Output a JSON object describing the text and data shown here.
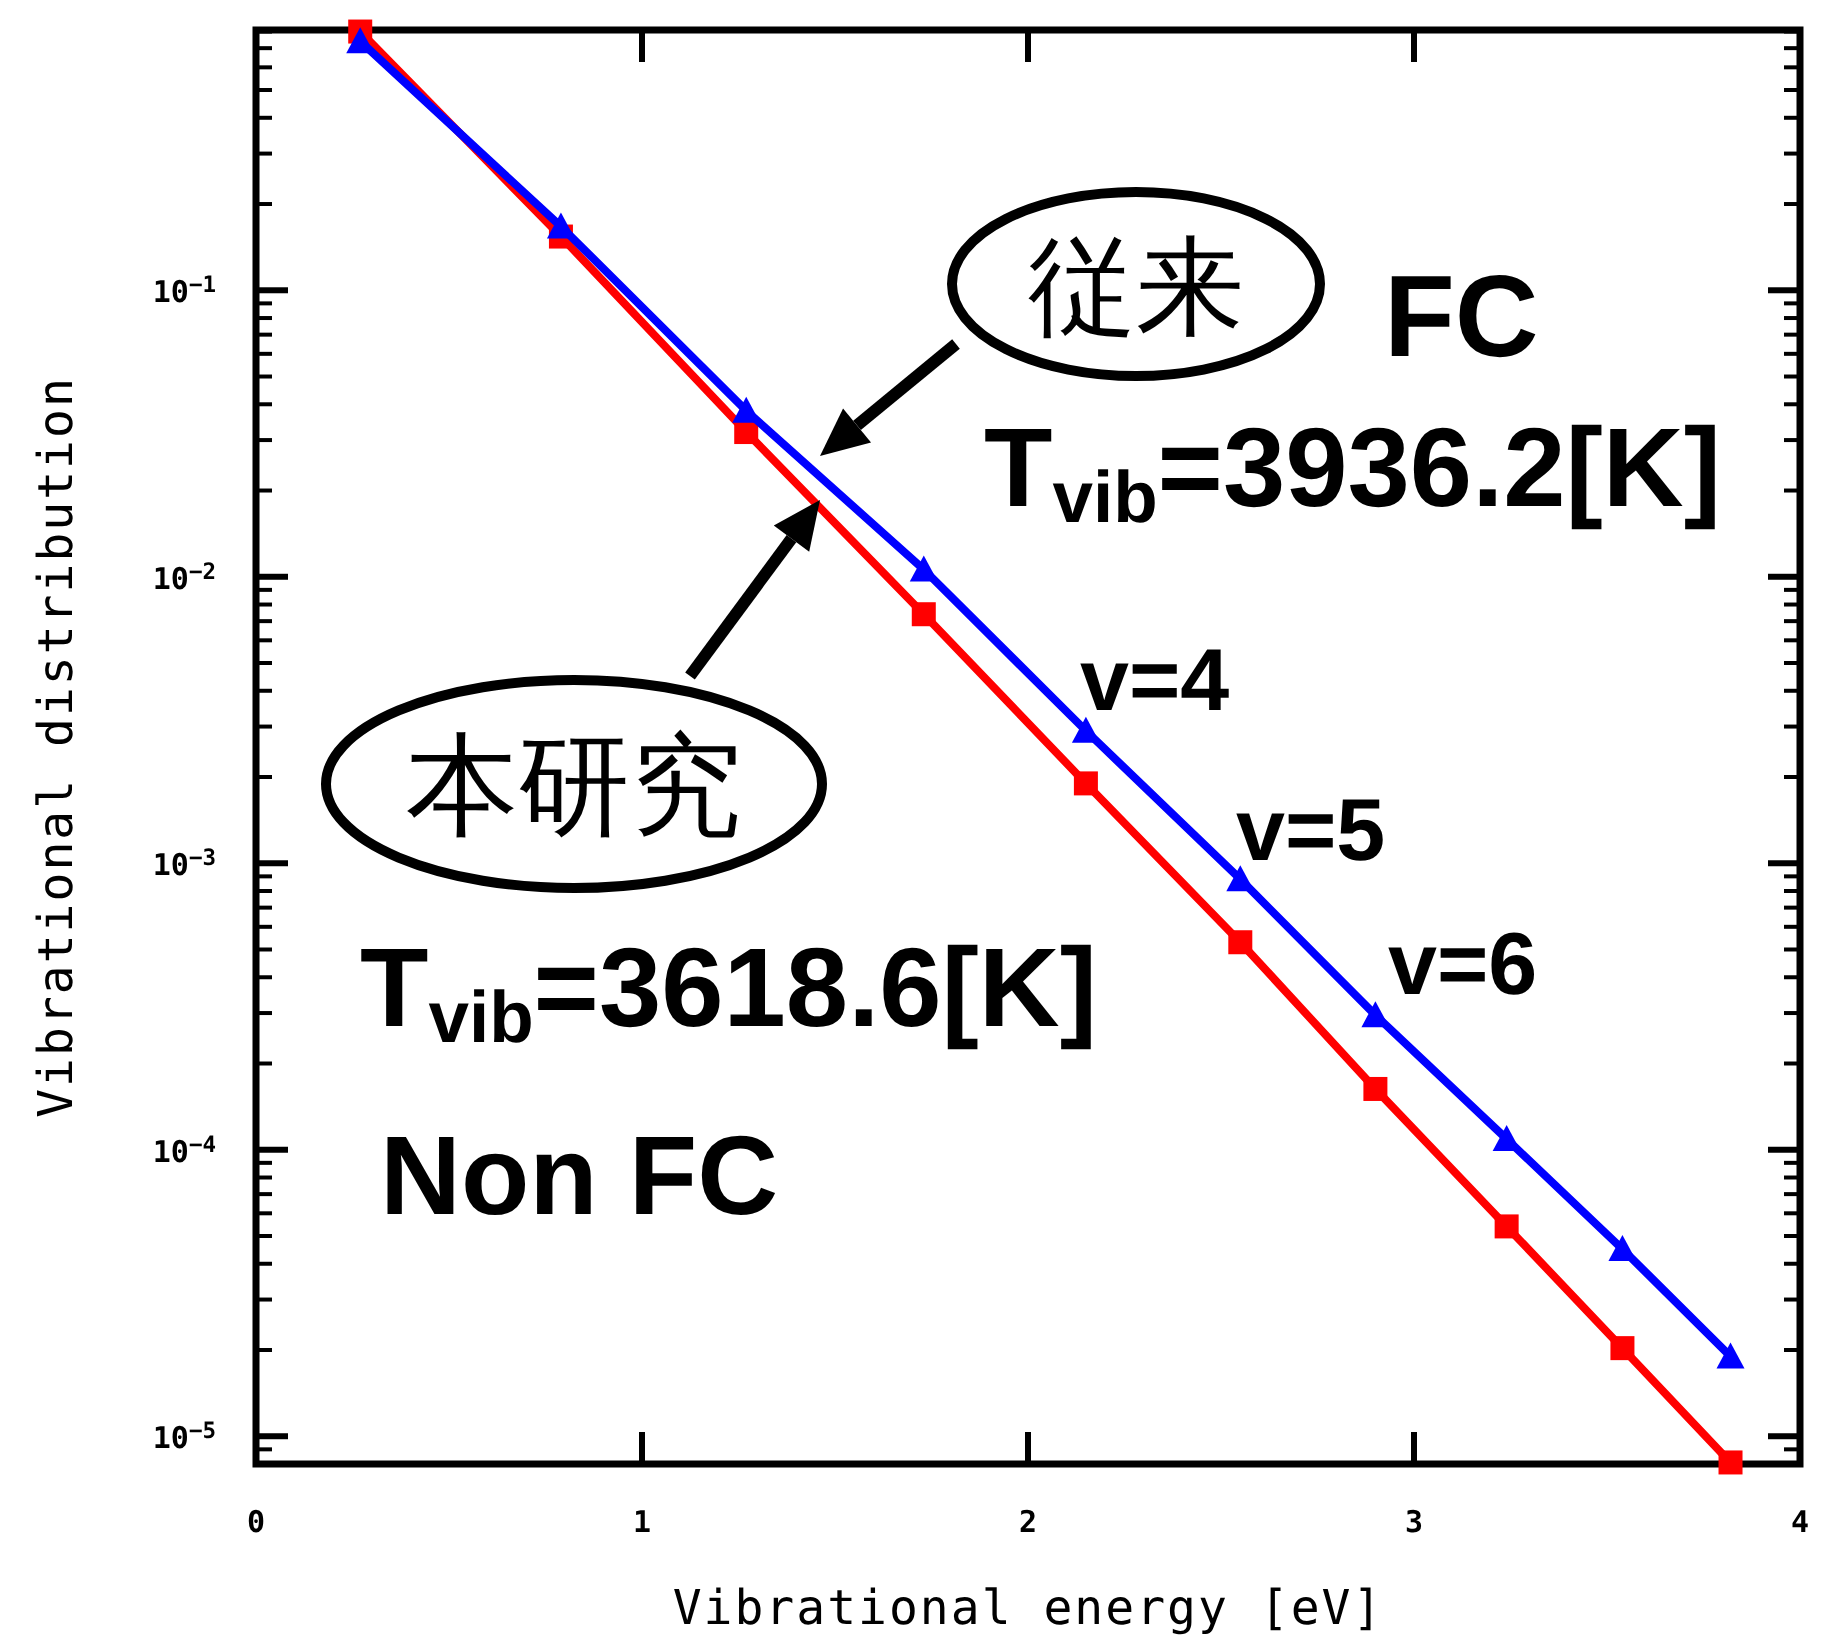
{
  "chart_data": {
    "type": "line",
    "xlabel": "Vibrational energy [eV]",
    "ylabel": "Vibrational distribution",
    "x": [
      0.27,
      0.79,
      1.27,
      1.73,
      2.15,
      2.55,
      2.9,
      3.24,
      3.54,
      3.82
    ],
    "series": [
      {
        "color": "#ff0000",
        "marker": "square",
        "values": [
          0.8,
          0.154,
          0.032,
          0.0074,
          0.0019,
          0.00053,
          0.000163,
          5.4e-05,
          2.03e-05,
          8.1e-06
        ]
      },
      {
        "color": "#0000ff",
        "marker": "triangle",
        "values": [
          0.74,
          0.167,
          0.038,
          0.0106,
          0.0029,
          0.00088,
          0.000295,
          0.000109,
          4.5e-05,
          1.9e-05
        ]
      }
    ],
    "log": "y",
    "grid": false,
    "xlim": [
      0,
      4
    ],
    "xticks": [
      0,
      1,
      2,
      3,
      4
    ],
    "ylim": [
      8e-06,
      0.81
    ],
    "yticks": [
      {
        "value": 1e-05,
        "label": "10$^{−5}$"
      },
      {
        "value": 0.0001,
        "label": "10$^{−4}$"
      },
      {
        "value": 0.001,
        "label": "10$^{−3}$"
      },
      {
        "value": 0.01,
        "label": "10$^{−2}$"
      },
      {
        "value": 0.1,
        "label": "10$^{−1}$"
      }
    ],
    "annotations": [
      "従来",
      "FC",
      "T$_{vib}$=3936.2[K]",
      "v=4",
      "v=5",
      "v=6",
      "本研究",
      "T$_{vib}$=3618.6[K]",
      "Non FC"
    ]
  }
}
